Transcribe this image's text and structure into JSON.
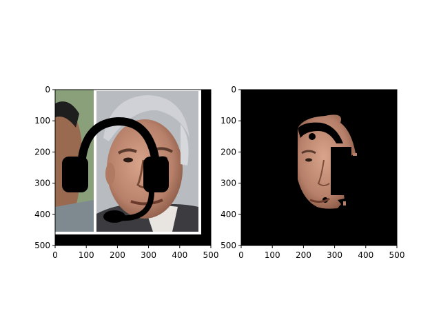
{
  "chart_data": [
    {
      "type": "image",
      "content": "photo: face with black headset overlay",
      "xlim": [
        0,
        500
      ],
      "ylim": [
        500,
        0
      ],
      "xticks": [
        0,
        100,
        200,
        300,
        400,
        500
      ],
      "yticks": [
        0,
        100,
        200,
        300,
        400,
        500
      ],
      "title": "",
      "xlabel": "",
      "ylabel": ""
    },
    {
      "type": "image",
      "content": "segmented face mask on black background",
      "xlim": [
        0,
        500
      ],
      "ylim": [
        500,
        0
      ],
      "xticks": [
        0,
        100,
        200,
        300,
        400,
        500
      ],
      "yticks": [
        0,
        100,
        200,
        300,
        400,
        500
      ],
      "title": "",
      "xlabel": "",
      "ylabel": ""
    }
  ],
  "colors": {
    "background": "#ffffff",
    "image_black": "#000000",
    "skin": "#c9937a",
    "skin_dark": "#a06b52",
    "hair": "#c8c8cc",
    "green_bg": "#8aa07a",
    "suit": "#505050"
  },
  "icons": {
    "overlay": "headset-icon"
  }
}
